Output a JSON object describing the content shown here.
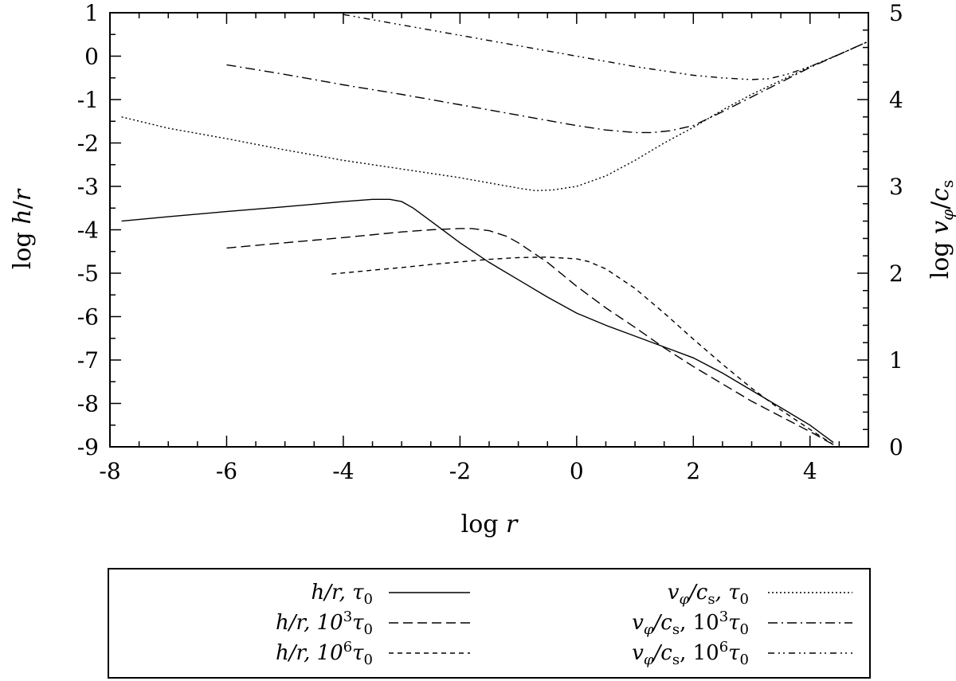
{
  "chart_data": {
    "type": "line",
    "title": "",
    "xlabel": "log r",
    "ylabel": "log h/r",
    "y2label": "log v_φ/c_s",
    "xlim": [
      -8,
      5
    ],
    "ylim": [
      -9,
      1
    ],
    "y2lim": [
      0,
      5
    ],
    "x_ticks": [
      -8,
      -6,
      -4,
      -2,
      0,
      2,
      4
    ],
    "x_tick_labels": [
      "-8",
      "-6",
      "-4",
      "-2",
      "0",
      "2",
      "4"
    ],
    "y_ticks": [
      1,
      0,
      -1,
      -2,
      -3,
      -4,
      -5,
      -6,
      -7,
      -8,
      -9
    ],
    "y_tick_labels": [
      "1",
      "0",
      "-1",
      "-2",
      "-3",
      "-4",
      "-5",
      "-6",
      "-7",
      "-8",
      "-9"
    ],
    "y2_ticks": [
      0,
      1,
      2,
      3,
      4,
      5
    ],
    "y2_tick_labels": [
      "0",
      "1",
      "2",
      "3",
      "4",
      "5"
    ],
    "grid": false,
    "legend_position": "bottom, below plot",
    "series": [
      {
        "name": "h/r, τ0",
        "axis": "left",
        "style": "solid",
        "x": [
          -7.8,
          -7,
          -6,
          -5,
          -4,
          -3.5,
          -3.2,
          -3.0,
          -2.8,
          -2.5,
          -2,
          -1.5,
          -1,
          -0.5,
          0,
          0.5,
          1,
          1.5,
          2,
          2.5,
          3,
          3.5,
          4,
          4.4
        ],
        "y": [
          -3.8,
          -3.7,
          -3.58,
          -3.47,
          -3.35,
          -3.3,
          -3.3,
          -3.35,
          -3.5,
          -3.8,
          -4.3,
          -4.75,
          -5.15,
          -5.55,
          -5.92,
          -6.2,
          -6.45,
          -6.7,
          -6.95,
          -7.3,
          -7.7,
          -8.1,
          -8.5,
          -8.9
        ]
      },
      {
        "name": "h/r, 10^3 τ0",
        "axis": "left",
        "style": "dashed",
        "x": [
          -6,
          -5,
          -4,
          -3,
          -2.5,
          -2,
          -1.8,
          -1.5,
          -1.2,
          -1,
          -0.5,
          0,
          0.5,
          1,
          1.5,
          2,
          2.5,
          3,
          3.5,
          4,
          4.4
        ],
        "y": [
          -4.42,
          -4.3,
          -4.18,
          -4.05,
          -4,
          -3.97,
          -3.97,
          -4.02,
          -4.15,
          -4.3,
          -4.75,
          -5.3,
          -5.8,
          -6.25,
          -6.72,
          -7.15,
          -7.55,
          -7.95,
          -8.3,
          -8.65,
          -8.95
        ]
      },
      {
        "name": "h/r, 10^6 τ0",
        "axis": "left",
        "style": "short-dashed",
        "x": [
          -4.2,
          -3.5,
          -3,
          -2.5,
          -2,
          -1.5,
          -1,
          -0.5,
          0,
          0.2,
          0.5,
          1,
          1.5,
          2,
          2.5,
          3,
          3.5,
          4,
          4.4
        ],
        "y": [
          -5.02,
          -4.93,
          -4.87,
          -4.8,
          -4.74,
          -4.68,
          -4.64,
          -4.63,
          -4.67,
          -4.73,
          -4.9,
          -5.35,
          -5.92,
          -6.52,
          -7.1,
          -7.65,
          -8.15,
          -8.6,
          -8.95
        ]
      },
      {
        "name": "v_φ/c_s, τ0",
        "axis": "right",
        "style": "dotted",
        "x": [
          -7.8,
          -7,
          -6,
          -5,
          -4,
          -3,
          -2,
          -1,
          -0.7,
          -0.4,
          0,
          0.5,
          1,
          1.5,
          2,
          2.5,
          3,
          3.5,
          4,
          4.5,
          5
        ],
        "y": [
          3.8,
          3.67,
          3.55,
          3.42,
          3.3,
          3.2,
          3.1,
          2.98,
          2.95,
          2.96,
          3.0,
          3.12,
          3.3,
          3.5,
          3.68,
          3.88,
          4.06,
          4.22,
          4.38,
          4.52,
          4.67
        ]
      },
      {
        "name": "v_φ/c_s, 10^3 τ0",
        "axis": "right",
        "style": "dash-dot",
        "x": [
          -6,
          -5,
          -4,
          -3,
          -2,
          -1,
          0,
          0.5,
          1,
          1.3,
          1.6,
          2,
          2.5,
          3,
          3.5,
          4,
          4.5,
          5
        ],
        "y": [
          4.4,
          4.29,
          4.17,
          4.06,
          3.94,
          3.82,
          3.7,
          3.65,
          3.62,
          3.62,
          3.64,
          3.7,
          3.86,
          4.03,
          4.2,
          4.37,
          4.52,
          4.67
        ]
      },
      {
        "name": "v_φ/c_s, 10^6 τ0",
        "axis": "right",
        "style": "dash-dot-dot",
        "x": [
          -4,
          -3,
          -2,
          -1,
          0,
          1,
          2,
          2.5,
          3,
          3.3,
          3.6,
          4,
          4.5,
          5
        ],
        "y": [
          4.98,
          4.86,
          4.74,
          4.62,
          4.5,
          4.38,
          4.28,
          4.25,
          4.23,
          4.24,
          4.29,
          4.38,
          4.52,
          4.67
        ]
      }
    ]
  },
  "legend": {
    "entries": [
      {
        "text": "h/r, τ",
        "sub": "0",
        "sup": "",
        "prefix": ""
      },
      {
        "text": "h/r, 10",
        "sup": "3",
        "sub": "0",
        "tau": "τ"
      },
      {
        "text": "h/r, 10",
        "sup": "6",
        "sub": "0",
        "tau": "τ"
      },
      {
        "text": "v",
        "v_sub": "φ",
        "cs": "/c",
        "cs_sub": "s",
        "rest": ", τ",
        "sub": "0"
      },
      {
        "text": "v",
        "v_sub": "φ",
        "cs": "/c",
        "cs_sub": "s",
        "rest": ", 10",
        "sup": "3",
        "tau": "τ",
        "sub": "0"
      },
      {
        "text": "v",
        "v_sub": "φ",
        "cs": "/c",
        "cs_sub": "s",
        "rest": ", 10",
        "sup": "6",
        "tau": "τ",
        "sub": "0"
      }
    ]
  },
  "colors": {
    "line": "#000000",
    "background": "#ffffff"
  }
}
